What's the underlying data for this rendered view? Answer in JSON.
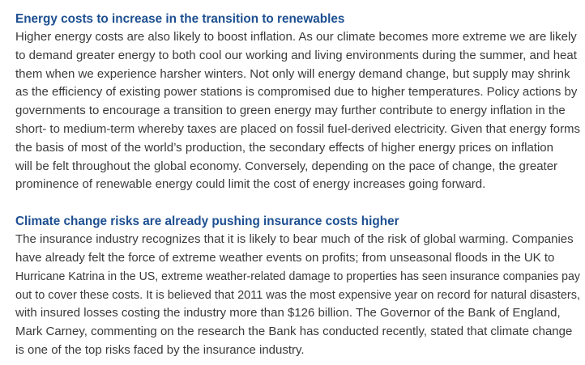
{
  "sections": [
    {
      "heading": "Energy costs to increase in the transition to renewables",
      "lines": [
        "Higher energy costs are also likely to boost inflation. As our climate becomes more extreme we are likely",
        "to demand greater energy to both cool our working and living environments during the summer, and heat",
        "them when we experience harsher winters. Not only will energy demand change, but supply may shrink",
        "as the efficiency of existing power stations is compromised due to higher temperatures. Policy actions by",
        "governments to encourage a transition to green energy may further contribute to energy inflation in the",
        "short- to medium-term whereby taxes are placed on fossil fuel-derived electricity. Given that energy forms",
        "the basis of most of the world’s production, the secondary effects of higher energy prices on inflation",
        "will be felt throughout the global economy. Conversely, depending on the pace of change, the greater",
        "prominence of renewable energy could limit the cost of energy increases going forward."
      ]
    },
    {
      "heading": "Climate change risks are already pushing insurance costs higher",
      "lines": [
        "The insurance industry recognizes that it is likely to bear much of the risk of global warming. Companies",
        "have already felt the force of extreme weather events on profits; from unseasonal floods in the UK to",
        "Hurricane Katrina in the US, extreme weather-related damage to properties has seen insurance companies pay",
        "out to cover these costs. It is believed that 2011 was the most expensive year on record for natural disasters,",
        "with insured losses costing the industry more than $126 billion. The Governor of the Bank of England,",
        "Mark Carney, commenting on the research the Bank has conducted recently, stated that climate change",
        "is one of the top risks faced by the insurance industry."
      ]
    }
  ]
}
